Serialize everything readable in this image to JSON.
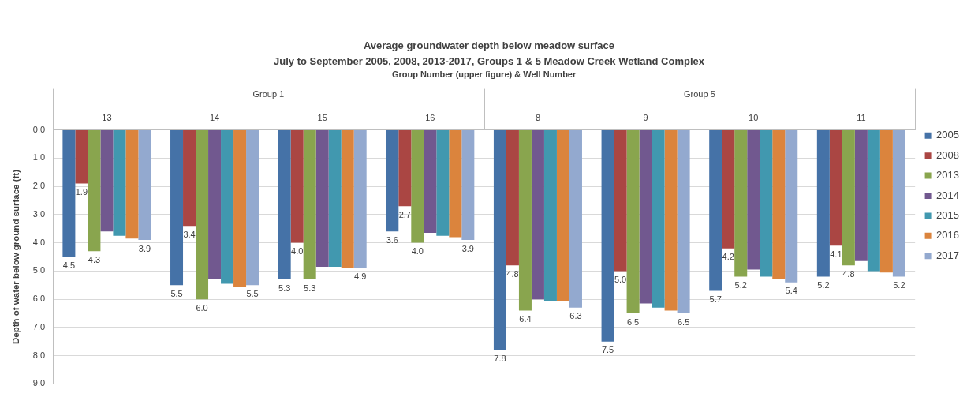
{
  "chart_data": {
    "type": "bar",
    "title": "Average groundwater depth below meadow surface",
    "subtitle": "July to September 2005, 2008, 2013-2017, Groups 1 & 5 Meadow Creek Wetland Complex",
    "xlabel": "Group Number (upper figure) & Well Number",
    "ylabel": "Depth of water below ground surface (ft)",
    "annotations": [
      "Group 1",
      "Group 5"
    ],
    "categories": [
      "13",
      "14",
      "15",
      "16",
      "8",
      "9",
      "10",
      "11"
    ],
    "series": [
      {
        "name": "2005",
        "color": "#4572a7",
        "values": [
          4.5,
          5.5,
          5.3,
          3.6,
          7.8,
          7.5,
          5.7,
          5.2
        ],
        "value_labels": [
          "4.5",
          "5.5",
          "5.3",
          "3.6",
          "7.8",
          "7.5",
          "5.7",
          "5.2"
        ]
      },
      {
        "name": "2008",
        "color": "#aa4643",
        "values": [
          1.9,
          3.4,
          4.0,
          2.7,
          4.8,
          5.0,
          4.2,
          4.1
        ],
        "value_labels": [
          "1.9",
          "3.4",
          "4.0",
          "2.7",
          "4.8",
          "5.0",
          "4.2",
          "4.1"
        ]
      },
      {
        "name": "2013",
        "color": "#89a54e",
        "values": [
          4.3,
          6.0,
          5.3,
          4.0,
          6.4,
          6.5,
          5.2,
          4.8
        ],
        "value_labels": [
          "4.3",
          "6.0",
          "5.3",
          "4.0",
          "6.4",
          "6.5",
          "5.2",
          "4.8"
        ]
      },
      {
        "name": "2014",
        "color": "#71588f",
        "values": [
          3.6,
          5.3,
          4.85,
          3.65,
          6.0,
          6.15,
          4.95,
          4.65
        ]
      },
      {
        "name": "2015",
        "color": "#4198af",
        "values": [
          3.75,
          5.45,
          4.85,
          3.75,
          6.05,
          6.3,
          5.2,
          5.0
        ]
      },
      {
        "name": "2016",
        "color": "#db843d",
        "values": [
          3.85,
          5.55,
          4.9,
          3.8,
          6.05,
          6.4,
          5.3,
          5.05
        ]
      },
      {
        "name": "2017",
        "color": "#93a9cf",
        "values": [
          3.9,
          5.5,
          4.9,
          3.9,
          6.3,
          6.5,
          5.4,
          5.2
        ],
        "value_labels": [
          "3.9",
          "5.5",
          "4.9",
          "3.9",
          "6.3",
          "6.5",
          "5.4",
          "5.2"
        ]
      }
    ],
    "ylim": [
      9,
      0
    ],
    "yticks": [
      {
        "value": 0,
        "label": "0.0"
      },
      {
        "value": 1,
        "label": "1.0"
      },
      {
        "value": 2,
        "label": "2.0"
      },
      {
        "value": 3,
        "label": "3.0"
      },
      {
        "value": 4,
        "label": "4.0"
      },
      {
        "value": 5,
        "label": "5.0"
      },
      {
        "value": 6,
        "label": "6.0"
      },
      {
        "value": 7,
        "label": "7.0"
      },
      {
        "value": 8,
        "label": "8.0"
      },
      {
        "value": 9,
        "label": "9.0"
      }
    ],
    "grid": "y",
    "legend": "right"
  }
}
